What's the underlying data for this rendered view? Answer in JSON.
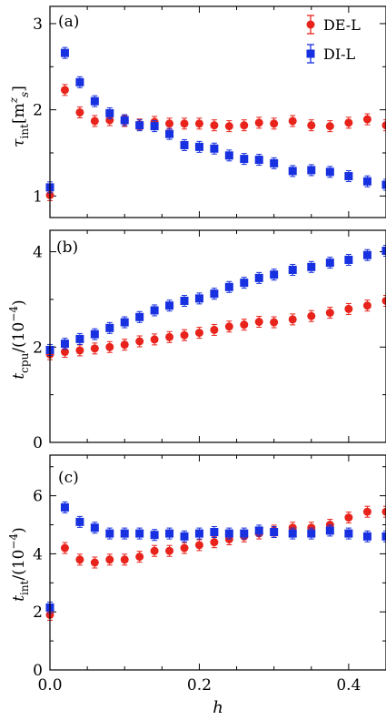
{
  "chart_data": [
    {
      "type": "scatter",
      "panel_label": "(a)",
      "ylabel": {
        "main": "τ",
        "sub": "int",
        "rest": "[m",
        "sup": "z",
        "sub2": "s",
        "close": "]"
      },
      "xlim": [
        0,
        0.45
      ],
      "ylim": [
        0.75,
        3.2
      ],
      "yticks": [
        1,
        2,
        3
      ],
      "ytick_labels": [
        "1",
        "2",
        "3"
      ],
      "legend": {
        "placement": "top-right",
        "entries": [
          "DE-L",
          "DI-L"
        ]
      },
      "x": [
        0.0,
        0.02,
        0.04,
        0.06,
        0.08,
        0.1,
        0.12,
        0.14,
        0.16,
        0.18,
        0.2,
        0.22,
        0.24,
        0.26,
        0.28,
        0.3,
        0.325,
        0.35,
        0.375,
        0.4,
        0.425,
        0.45
      ],
      "series": [
        {
          "name": "DE-L",
          "color": "#e8231b",
          "marker": "circle",
          "values": [
            1.01,
            2.23,
            1.97,
            1.87,
            1.88,
            1.87,
            1.83,
            1.86,
            1.84,
            1.84,
            1.84,
            1.82,
            1.81,
            1.82,
            1.85,
            1.84,
            1.87,
            1.82,
            1.81,
            1.85,
            1.89,
            1.82
          ]
        },
        {
          "name": "DI-L",
          "color": "#1730e0",
          "marker": "square",
          "values": [
            1.1,
            2.66,
            2.32,
            2.1,
            1.96,
            1.88,
            1.82,
            1.81,
            1.72,
            1.59,
            1.57,
            1.55,
            1.47,
            1.43,
            1.42,
            1.38,
            1.29,
            1.3,
            1.28,
            1.23,
            1.17,
            1.13
          ]
        }
      ]
    },
    {
      "type": "scatter",
      "panel_label": "(b)",
      "ylabel": {
        "main": "t",
        "sub": "cpu",
        "rest": "/(10",
        "sup": "−4",
        "close": ")"
      },
      "xlim": [
        0,
        0.45
      ],
      "ylim": [
        0,
        4.45
      ],
      "yticks": [
        0,
        2,
        4
      ],
      "ytick_labels": [
        "0",
        "2",
        "4"
      ],
      "x": [
        0.0,
        0.02,
        0.04,
        0.06,
        0.08,
        0.1,
        0.12,
        0.14,
        0.16,
        0.18,
        0.2,
        0.22,
        0.24,
        0.26,
        0.28,
        0.3,
        0.325,
        0.35,
        0.375,
        0.4,
        0.425,
        0.45
      ],
      "series": [
        {
          "name": "DE-L",
          "color": "#e8231b",
          "marker": "circle",
          "values": [
            1.85,
            1.9,
            1.93,
            1.97,
            2.0,
            2.05,
            2.12,
            2.16,
            2.21,
            2.25,
            2.3,
            2.36,
            2.43,
            2.47,
            2.53,
            2.52,
            2.58,
            2.65,
            2.72,
            2.8,
            2.87,
            2.97
          ]
        },
        {
          "name": "DI-L",
          "color": "#1730e0",
          "marker": "square",
          "values": [
            1.94,
            2.07,
            2.17,
            2.27,
            2.4,
            2.52,
            2.63,
            2.77,
            2.87,
            2.97,
            3.02,
            3.12,
            3.26,
            3.35,
            3.45,
            3.52,
            3.62,
            3.68,
            3.77,
            3.83,
            3.93,
            4.02
          ]
        }
      ]
    },
    {
      "type": "scatter",
      "panel_label": "(c)",
      "ylabel": {
        "main": "t",
        "sub": "int",
        "rest": "/(10",
        "sup": "−4",
        "close": ")"
      },
      "xlim": [
        0,
        0.45
      ],
      "ylim": [
        0,
        7.4
      ],
      "yticks": [
        0,
        2,
        4,
        6
      ],
      "ytick_labels": [
        "0",
        "2",
        "4",
        "6"
      ],
      "xticks": [
        0.0,
        0.2,
        0.4
      ],
      "xtick_labels": [
        "0.0",
        "0.2",
        "0.4"
      ],
      "xlabel": "h",
      "x": [
        0.0,
        0.02,
        0.04,
        0.06,
        0.08,
        0.1,
        0.12,
        0.14,
        0.16,
        0.18,
        0.2,
        0.22,
        0.24,
        0.26,
        0.28,
        0.3,
        0.325,
        0.35,
        0.375,
        0.4,
        0.425,
        0.45
      ],
      "series": [
        {
          "name": "DE-L",
          "color": "#e8231b",
          "marker": "circle",
          "values": [
            1.9,
            4.2,
            3.8,
            3.7,
            3.8,
            3.8,
            3.9,
            4.1,
            4.1,
            4.2,
            4.3,
            4.4,
            4.5,
            4.6,
            4.7,
            4.8,
            4.9,
            4.9,
            5.0,
            5.25,
            5.45,
            5.45
          ]
        },
        {
          "name": "DI-L",
          "color": "#1730e0",
          "marker": "square",
          "values": [
            2.15,
            5.6,
            5.1,
            4.9,
            4.7,
            4.7,
            4.7,
            4.65,
            4.7,
            4.6,
            4.7,
            4.75,
            4.7,
            4.7,
            4.8,
            4.75,
            4.7,
            4.7,
            4.8,
            4.7,
            4.6,
            4.6
          ]
        }
      ]
    }
  ]
}
